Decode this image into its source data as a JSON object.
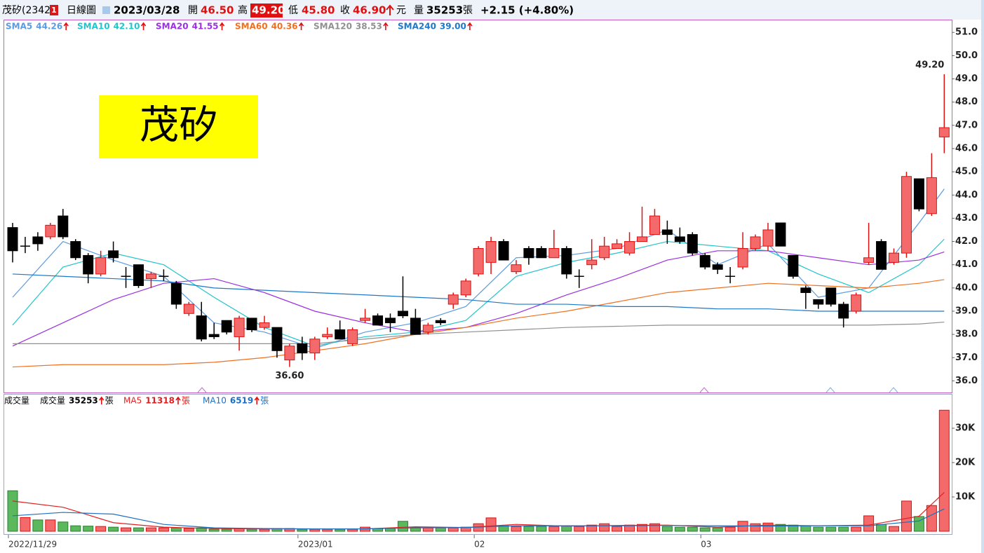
{
  "header": {
    "name": "茂矽(2342)",
    "badge": "1",
    "period": "日線圖",
    "date": "2023/03/28",
    "open_label": "開",
    "open": "46.50",
    "high_label": "高",
    "high": "49.20",
    "low_label": "低",
    "low": "45.80",
    "close_label": "收",
    "close": "46.90",
    "currency": "元",
    "volume_label": "量",
    "volume": "35253",
    "volume_unit": "張",
    "change": "+2.15 (+4.80%)"
  },
  "chart_data": [
    {
      "type": "candlestick",
      "title": "茂矽",
      "categories": [
        "2022/11/29",
        null,
        null,
        null,
        null,
        null,
        null,
        null,
        null,
        null,
        null,
        null,
        null,
        null,
        null,
        null,
        null,
        null,
        null,
        null,
        null,
        null,
        null,
        "2023/01",
        null,
        null,
        null,
        null,
        null,
        null,
        null,
        null,
        null,
        null,
        null,
        null,
        null,
        "02",
        null,
        null,
        null,
        null,
        null,
        null,
        null,
        null,
        null,
        null,
        null,
        null,
        null,
        null,
        null,
        null,
        null,
        "03",
        null,
        null,
        null,
        null,
        null,
        null,
        null,
        null,
        null,
        null,
        null,
        null,
        null,
        null,
        null,
        null,
        null,
        null,
        null
      ],
      "open": [
        42.6,
        41.8,
        42.2,
        42.2,
        43.1,
        42.0,
        41.4,
        40.6,
        41.6,
        40.5,
        41.0,
        40.4,
        40.5,
        40.2,
        38.9,
        38.8,
        38.0,
        38.6,
        37.9,
        38.7,
        38.3,
        38.3,
        36.9,
        37.6,
        37.2,
        37.9,
        38.2,
        37.6,
        38.6,
        38.8,
        38.7,
        39.0,
        38.7,
        38.1,
        38.6,
        39.3,
        39.7,
        40.6,
        41.1,
        42.0,
        40.7,
        41.7,
        41.7,
        41.3,
        41.7,
        40.5,
        41.0,
        41.3,
        41.7,
        41.5,
        42.0,
        42.3,
        42.5,
        42.2,
        42.3,
        41.4,
        41.0,
        40.5,
        40.9,
        41.7,
        41.8,
        42.8,
        41.4,
        40.0,
        39.5,
        40.0,
        39.3,
        39.0,
        41.1,
        42.0,
        41.1,
        41.5,
        44.7,
        43.2,
        46.5
      ],
      "high": [
        42.8,
        42.2,
        42.4,
        42.8,
        43.4,
        42.1,
        41.5,
        41.6,
        42.0,
        40.9,
        41.0,
        40.7,
        40.8,
        40.3,
        39.4,
        39.4,
        38.5,
        38.6,
        38.8,
        38.7,
        38.8,
        38.3,
        37.6,
        37.9,
        37.9,
        38.3,
        38.6,
        38.3,
        39.1,
        38.9,
        38.9,
        40.5,
        39.1,
        38.5,
        38.7,
        39.8,
        40.4,
        41.8,
        42.2,
        42.1,
        41.2,
        41.8,
        41.8,
        42.5,
        41.8,
        40.8,
        42.1,
        42.2,
        42.1,
        42.4,
        43.5,
        43.4,
        42.9,
        42.6,
        42.4,
        41.5,
        41.1,
        40.9,
        42.4,
        42.3,
        42.8,
        42.8,
        41.4,
        40.1,
        39.5,
        40.0,
        39.4,
        39.8,
        42.8,
        42.1,
        41.7,
        45.0,
        44.7,
        45.8,
        49.2
      ],
      "low": [
        41.1,
        41.5,
        41.6,
        42.1,
        42.1,
        41.2,
        40.2,
        40.5,
        41.1,
        40.0,
        40.0,
        40.0,
        40.3,
        39.1,
        38.8,
        37.7,
        37.8,
        38.0,
        37.3,
        38.1,
        38.2,
        37.0,
        36.6,
        36.9,
        36.9,
        37.8,
        37.8,
        37.5,
        38.5,
        38.4,
        38.1,
        38.7,
        38.0,
        38.0,
        38.4,
        39.1,
        39.6,
        40.5,
        40.6,
        41.2,
        40.6,
        41.0,
        41.3,
        41.3,
        40.4,
        40.0,
        40.8,
        41.2,
        41.7,
        41.4,
        42.0,
        42.3,
        41.9,
        41.9,
        41.4,
        40.8,
        40.6,
        40.2,
        40.8,
        41.6,
        41.6,
        41.8,
        40.4,
        39.1,
        39.1,
        39.2,
        38.3,
        38.9,
        41.0,
        40.8,
        41.0,
        41.3,
        43.3,
        43.1,
        45.8
      ],
      "close": [
        41.6,
        41.8,
        41.9,
        42.7,
        42.2,
        41.3,
        40.6,
        41.3,
        41.3,
        40.5,
        40.1,
        40.6,
        40.5,
        39.3,
        39.3,
        37.8,
        37.9,
        38.1,
        38.7,
        38.2,
        38.5,
        37.3,
        37.5,
        37.2,
        37.8,
        38.0,
        37.8,
        38.2,
        38.7,
        38.4,
        38.5,
        38.8,
        38.0,
        38.4,
        38.5,
        39.7,
        40.3,
        41.7,
        42.0,
        41.2,
        41.0,
        41.3,
        41.3,
        41.7,
        40.6,
        40.5,
        41.2,
        41.8,
        41.9,
        42.0,
        42.2,
        43.1,
        42.3,
        42.0,
        41.5,
        40.9,
        40.8,
        40.5,
        41.7,
        42.2,
        42.5,
        41.8,
        40.5,
        39.8,
        39.3,
        39.3,
        38.7,
        39.7,
        41.3,
        40.8,
        41.5,
        44.8,
        43.4,
        44.75,
        46.9
      ],
      "up_color": "#f46a6a",
      "up_edge": "#e01010",
      "down_color": "#000000",
      "ylim": [
        35.5,
        51.55
      ],
      "yticks": [
        {
          "value": 36,
          "label": "36.0"
        },
        {
          "value": 37,
          "label": "37.0"
        },
        {
          "value": 38,
          "label": "38.0"
        },
        {
          "value": 39,
          "label": "39.0"
        },
        {
          "value": 40,
          "label": "40.0"
        },
        {
          "value": 41,
          "label": "41.0"
        },
        {
          "value": 42,
          "label": "42.0"
        },
        {
          "value": 43,
          "label": "43.0"
        },
        {
          "value": 44,
          "label": "44.0"
        },
        {
          "value": 45,
          "label": "45.0"
        },
        {
          "value": 46,
          "label": "46.0"
        },
        {
          "value": 47,
          "label": "47.0"
        },
        {
          "value": 48,
          "label": "48.0"
        },
        {
          "value": 49,
          "label": "49.0"
        },
        {
          "value": 50,
          "label": "50.0"
        },
        {
          "value": 51,
          "label": "51.0"
        }
      ],
      "series": [
        {
          "name": "SMA5",
          "color": "#5b9be0",
          "legend_value": "44.26",
          "x": [
            0,
            4,
            8,
            12,
            16,
            20,
            24,
            28,
            32,
            36,
            40,
            44,
            48,
            52,
            56,
            60,
            64,
            68,
            72,
            74
          ],
          "values": [
            39.6,
            42.0,
            41.2,
            40.5,
            38.5,
            38.1,
            37.4,
            38.1,
            38.5,
            39.2,
            41.3,
            41.4,
            41.7,
            42.5,
            41.0,
            41.9,
            39.6,
            40.0,
            42.8,
            44.26
          ]
        },
        {
          "name": "SMA10",
          "color": "#22c4cc",
          "legend_value": "42.10",
          "x": [
            0,
            4,
            8,
            12,
            16,
            20,
            24,
            28,
            32,
            36,
            40,
            44,
            48,
            52,
            56,
            60,
            64,
            68,
            72,
            74
          ],
          "values": [
            38.4,
            40.9,
            41.5,
            41.0,
            39.6,
            38.3,
            37.5,
            37.9,
            38.1,
            38.6,
            40.5,
            41.1,
            41.5,
            42.0,
            41.8,
            41.6,
            40.6,
            39.8,
            41.0,
            42.1
          ]
        },
        {
          "name": "SMA20",
          "color": "#9b30e0",
          "legend_value": "41.55",
          "x": [
            0,
            4,
            8,
            12,
            16,
            20,
            24,
            28,
            32,
            36,
            40,
            44,
            48,
            52,
            56,
            60,
            64,
            68,
            72,
            74
          ],
          "values": [
            37.5,
            38.5,
            39.5,
            40.2,
            40.4,
            39.8,
            39.0,
            38.5,
            38.1,
            38.3,
            38.9,
            39.7,
            40.4,
            41.2,
            41.6,
            41.6,
            41.3,
            41.0,
            41.2,
            41.55
          ]
        },
        {
          "name": "SMA60",
          "color": "#f07020",
          "legend_value": "40.36",
          "x": [
            0,
            4,
            8,
            12,
            16,
            20,
            24,
            28,
            32,
            36,
            40,
            44,
            48,
            52,
            56,
            60,
            64,
            68,
            72,
            74
          ],
          "values": [
            36.6,
            36.7,
            36.7,
            36.7,
            36.8,
            37.0,
            37.3,
            37.6,
            38.0,
            38.3,
            38.7,
            39.0,
            39.4,
            39.8,
            40.0,
            40.2,
            40.1,
            40.0,
            40.2,
            40.36
          ]
        },
        {
          "name": "SMA120",
          "color": "#909090",
          "legend_value": "38.53",
          "x": [
            0,
            4,
            8,
            12,
            16,
            20,
            24,
            28,
            32,
            36,
            40,
            44,
            48,
            52,
            56,
            60,
            64,
            68,
            72,
            74
          ],
          "values": [
            37.6,
            37.6,
            37.6,
            37.6,
            37.6,
            37.6,
            37.6,
            37.8,
            38.0,
            38.1,
            38.2,
            38.3,
            38.35,
            38.4,
            38.4,
            38.4,
            38.4,
            38.4,
            38.45,
            38.53
          ]
        },
        {
          "name": "SMA240",
          "color": "#1e78c8",
          "legend_value": "39.00",
          "x": [
            0,
            4,
            8,
            12,
            16,
            20,
            24,
            28,
            32,
            36,
            40,
            44,
            48,
            52,
            56,
            60,
            64,
            68,
            72,
            74
          ],
          "values": [
            40.6,
            40.5,
            40.4,
            40.3,
            40.0,
            39.9,
            39.8,
            39.7,
            39.6,
            39.5,
            39.3,
            39.3,
            39.2,
            39.2,
            39.1,
            39.1,
            39.0,
            39.0,
            39.0,
            39.0
          ]
        }
      ],
      "annotations": [
        {
          "text": "49.20",
          "index": 74,
          "value": 49.2
        },
        {
          "text": "36.60",
          "index": 22,
          "value": 36.6
        }
      ]
    },
    {
      "type": "bar",
      "title": "成交量",
      "name": "成交量",
      "unit": "張",
      "values": [
        11800,
        4000,
        3300,
        3300,
        2700,
        1600,
        1500,
        1400,
        1200,
        1000,
        1000,
        1000,
        1000,
        1000,
        800,
        1000,
        600,
        600,
        800,
        600,
        600,
        800,
        800,
        600,
        600,
        600,
        600,
        600,
        1200,
        800,
        800,
        2900,
        1200,
        1000,
        1000,
        1000,
        1200,
        2200,
        3900,
        1600,
        1400,
        1400,
        1400,
        1400,
        1600,
        1400,
        1800,
        2200,
        1400,
        1800,
        2000,
        2200,
        1400,
        1200,
        1200,
        1000,
        1000,
        1200,
        2900,
        2200,
        2400,
        2000,
        1800,
        1600,
        1200,
        1200,
        1200,
        1200,
        4500,
        2000,
        1400,
        8800,
        4300,
        7500,
        35253
      ],
      "up_color": "#f46a6a",
      "up_edge": "#e01010",
      "down_color": "#5cb85c",
      "down_edge": "#2e7d32",
      "ylim": [
        0,
        40000
      ],
      "yticks": [
        {
          "value": 10000,
          "label": "10K"
        },
        {
          "value": 20000,
          "label": "20K"
        },
        {
          "value": 30000,
          "label": "30K"
        }
      ],
      "series": [
        {
          "name": "MA5",
          "color": "#e02020",
          "x": [
            0,
            4,
            8,
            12,
            16,
            20,
            24,
            28,
            32,
            36,
            40,
            44,
            48,
            52,
            56,
            60,
            64,
            68,
            72,
            74
          ],
          "values": [
            8800,
            7000,
            2500,
            1200,
            800,
            700,
            700,
            700,
            1300,
            1100,
            2000,
            1500,
            1700,
            1800,
            1200,
            1800,
            1600,
            1800,
            4400,
            11318
          ]
        },
        {
          "name": "MA10",
          "color": "#1e6fc0",
          "x": [
            0,
            4,
            8,
            12,
            16,
            20,
            24,
            28,
            32,
            36,
            40,
            44,
            48,
            52,
            56,
            60,
            64,
            68,
            72,
            74
          ],
          "values": [
            4500,
            5500,
            5000,
            2000,
            1000,
            800,
            700,
            700,
            1000,
            1100,
            1600,
            1600,
            1600,
            1700,
            1600,
            1500,
            1600,
            1600,
            3000,
            6519
          ]
        }
      ]
    }
  ]
}
